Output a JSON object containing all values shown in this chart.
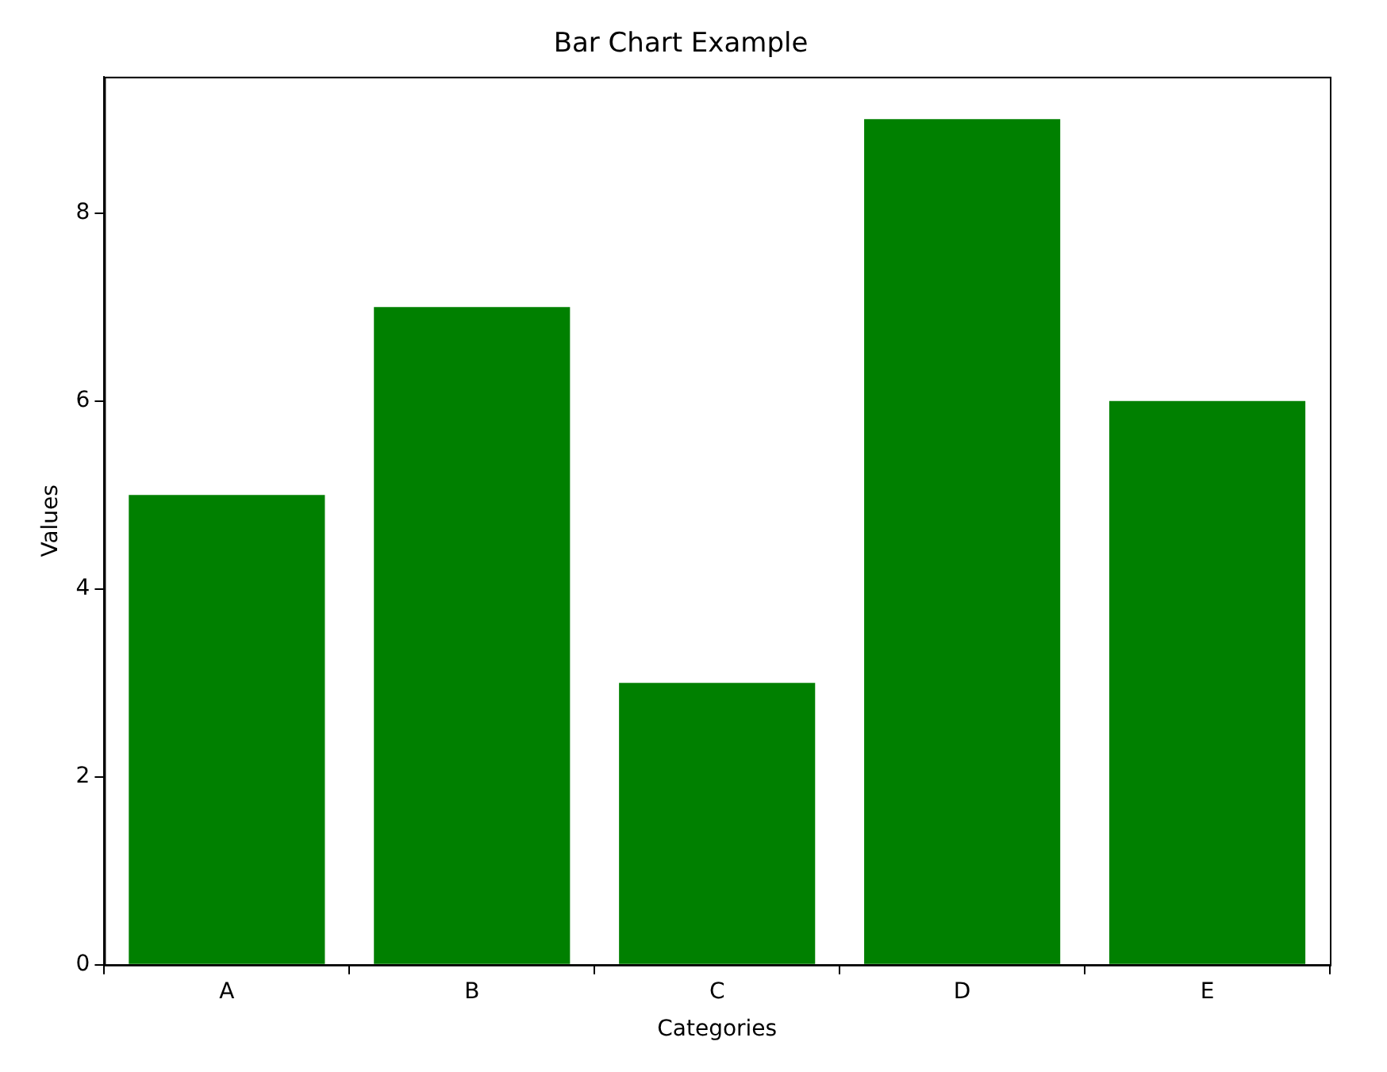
{
  "chart_data": {
    "type": "bar",
    "title": "Bar Chart Example",
    "xlabel": "Categories",
    "ylabel": "Values",
    "categories": [
      "A",
      "B",
      "C",
      "D",
      "E"
    ],
    "values": [
      5,
      7,
      3,
      9,
      6
    ],
    "color": "#008000",
    "ylim": [
      0,
      9.45
    ],
    "yticks": [
      0,
      2,
      4,
      6,
      8
    ],
    "grid": false,
    "legend": false
  }
}
